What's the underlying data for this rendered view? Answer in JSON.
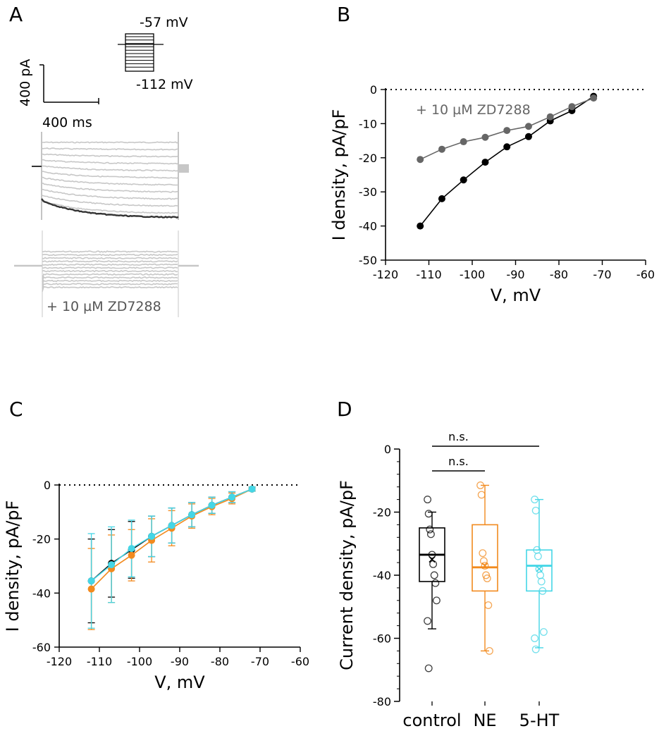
{
  "panel_labels": {
    "a": "A",
    "b": "B",
    "c": "C",
    "d": "D"
  },
  "colors": {
    "control": "#000000",
    "ne": "#f28a1e",
    "serotonin": "#45d6e6",
    "zd": "#666666",
    "trace_gray": "#c7c7c7",
    "trace_dark": "#333333"
  },
  "panel_a": {
    "protocol_top": "-57 mV",
    "protocol_bottom": "-112 mV",
    "scale_current": "400 pA",
    "scale_time": "400 ms",
    "drug_label": "+ 10 µM ZD7288"
  },
  "chart_data": [
    {
      "panel": "B",
      "type": "line",
      "xlabel": "V, mV",
      "ylabel": "I density, pA/pF",
      "xlim": [
        -120,
        -60
      ],
      "ylim": [
        -50,
        0
      ],
      "xticks": [
        "-120",
        "-110",
        "-100",
        "-90",
        "-80",
        "-70",
        "-60"
      ],
      "yticks": [
        "0",
        "-10",
        "-20",
        "-30",
        "-40",
        "-50"
      ],
      "annotation": "+ 10 µM ZD7288",
      "zero_line": "dotted",
      "series": [
        {
          "name": "control",
          "color": "#000000",
          "x": [
            -112,
            -107,
            -102,
            -97,
            -92,
            -87,
            -82,
            -77,
            -72
          ],
          "y": [
            -40,
            -32,
            -26.5,
            -21.3,
            -16.8,
            -13.8,
            -9.2,
            -6.2,
            -2
          ]
        },
        {
          "name": "+ 10 µM ZD7288",
          "color": "#666666",
          "x": [
            -112,
            -107,
            -102,
            -97,
            -92,
            -87,
            -82,
            -77,
            -72
          ],
          "y": [
            -20.5,
            -17.5,
            -15.3,
            -14,
            -12,
            -10.8,
            -8,
            -5,
            -2.5
          ]
        }
      ]
    },
    {
      "panel": "C",
      "type": "line",
      "xlabel": "V, mV",
      "ylabel": "I density, pA/pF",
      "xlim": [
        -120,
        -60
      ],
      "ylim": [
        -60,
        0
      ],
      "xticks": [
        "-120",
        "-110",
        "-100",
        "-90",
        "-80",
        "-70",
        "-60"
      ],
      "yticks": [
        "0",
        "-20",
        "-40",
        "-60"
      ],
      "zero_line": "dotted",
      "series": [
        {
          "name": "control",
          "color": "#000000",
          "x": [
            -112,
            -107,
            -102,
            -97,
            -92,
            -87,
            -82,
            -77,
            -72
          ],
          "y": [
            -35.5,
            -29,
            -24,
            -19,
            -15,
            -11,
            -7.5,
            -4.5,
            -1.5
          ],
          "err": [
            15.5,
            12.5,
            10.5,
            7.5,
            6.5,
            4.5,
            3,
            2,
            0.8
          ]
        },
        {
          "name": "NE",
          "color": "#f28a1e",
          "x": [
            -112,
            -107,
            -102,
            -97,
            -92,
            -87,
            -82,
            -77,
            -72
          ],
          "y": [
            -38.5,
            -31,
            -26,
            -20.5,
            -16,
            -11.5,
            -8,
            -5,
            -1.5
          ],
          "err": [
            15,
            12.5,
            9.5,
            8,
            6.5,
            4.5,
            3,
            2,
            0.8
          ]
        },
        {
          "name": "5-HT",
          "color": "#45d6e6",
          "x": [
            -112,
            -107,
            -102,
            -97,
            -92,
            -87,
            -82,
            -77,
            -72
          ],
          "y": [
            -35.5,
            -29.5,
            -23.5,
            -19,
            -15,
            -11,
            -7.5,
            -4.5,
            -1.5
          ],
          "err": [
            17.5,
            14,
            10.5,
            7.5,
            6.5,
            4.5,
            3,
            2,
            0.8
          ]
        }
      ]
    },
    {
      "panel": "D",
      "type": "box",
      "ylabel": "Current density, pA/pF",
      "ylim": [
        -80,
        0
      ],
      "yticks": [
        "0",
        "-20",
        "-40",
        "-60",
        "-80"
      ],
      "categories": [
        "control",
        "NE",
        "5-HT"
      ],
      "significance": [
        {
          "from": "control",
          "to": "NE",
          "label": "n.s."
        },
        {
          "from": "control",
          "to": "5-HT",
          "label": "n.s."
        }
      ],
      "series": [
        {
          "name": "control",
          "color": "#000000",
          "q1": -42,
          "median": -33.5,
          "q3": -25,
          "mean": -35,
          "whisker_low": -57,
          "whisker_high": -20,
          "points": [
            -16,
            -20.5,
            -25.5,
            -27,
            -33.5,
            -36.5,
            -40,
            -42.5,
            -48,
            -54.5,
            -69.5
          ]
        },
        {
          "name": "NE",
          "color": "#f28a1e",
          "q1": -45,
          "median": -37.5,
          "q3": -24,
          "mean": -37,
          "whisker_low": -64,
          "whisker_high": -11.5,
          "points": [
            -11.5,
            -14.5,
            -33,
            -35.5,
            -37,
            -40,
            -41,
            -49.5,
            -64
          ]
        },
        {
          "name": "5-HT",
          "color": "#45d6e6",
          "q1": -45,
          "median": -37,
          "q3": -32,
          "mean": -38,
          "whisker_low": -63,
          "whisker_high": -16,
          "points": [
            -16,
            -19.5,
            -32,
            -34,
            -38,
            -40,
            -42,
            -45,
            -58,
            -60,
            -63.5
          ]
        }
      ]
    }
  ]
}
